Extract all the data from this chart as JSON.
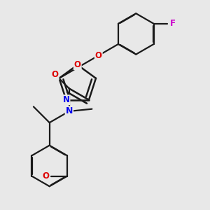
{
  "background_color": "#e8e8e8",
  "bond_color": "#1a1a1a",
  "atom_colors": {
    "N": "#0000ee",
    "O": "#dd0000",
    "F": "#cc00cc",
    "C": "#1a1a1a"
  },
  "figsize": [
    3.0,
    3.0
  ],
  "dpi": 100
}
